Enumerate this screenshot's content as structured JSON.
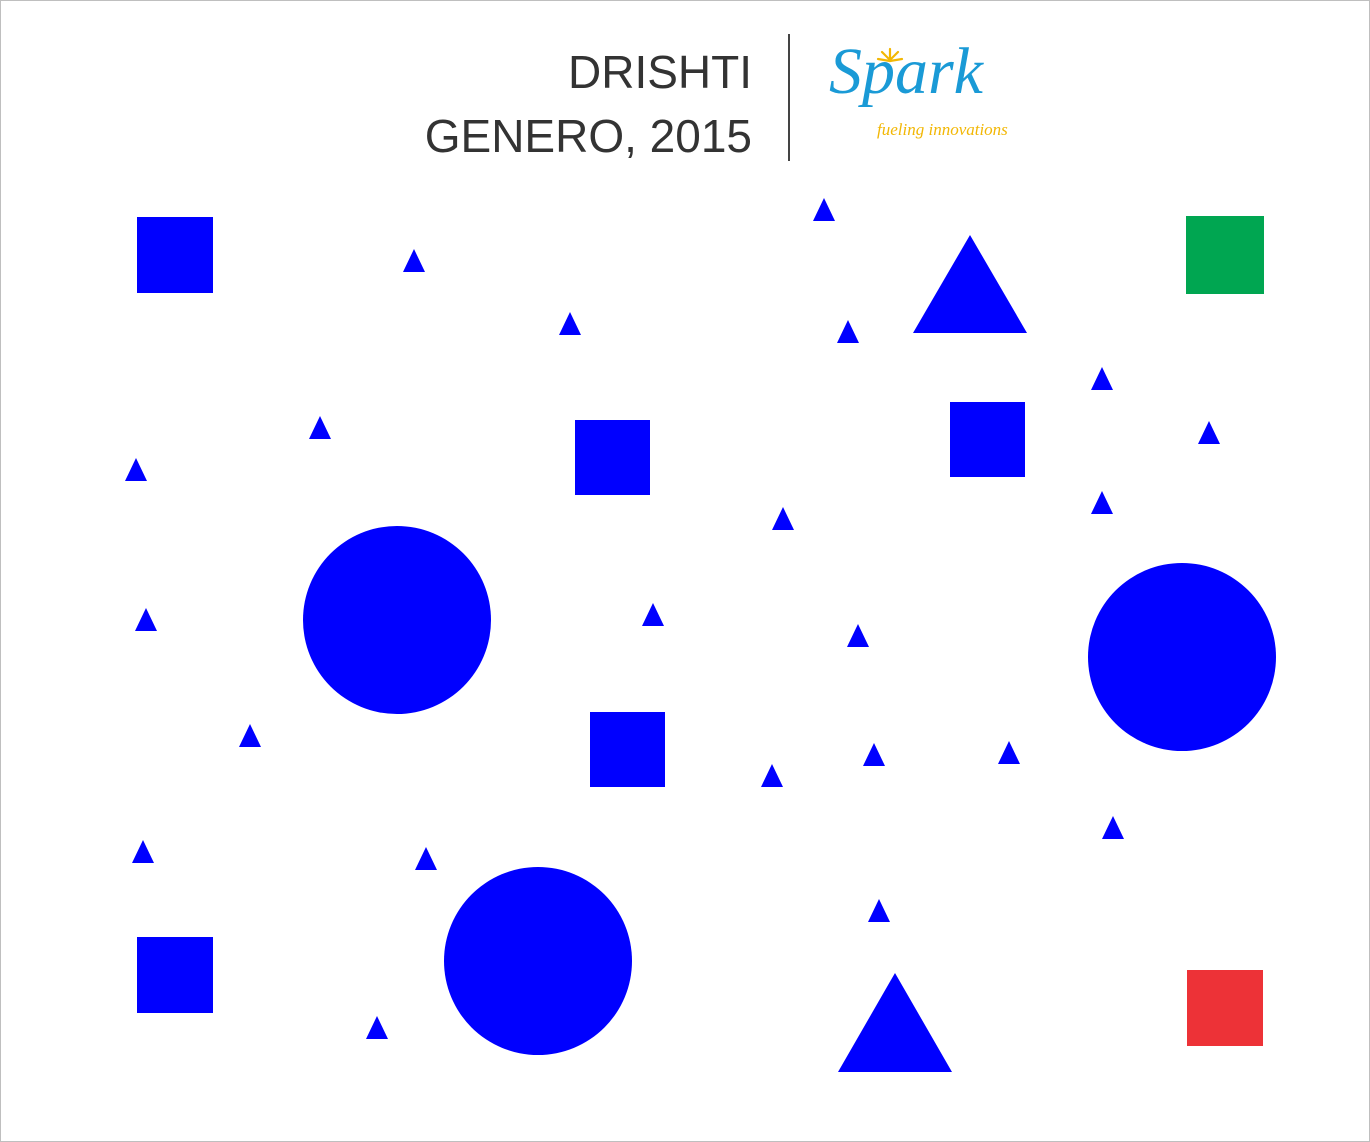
{
  "header": {
    "title_line1": "DRISHTI",
    "title_line2": "GENERO, 2015"
  },
  "logo": {
    "brand": "Spark",
    "tagline": "fueling innovations",
    "brand_color": "#1a9ad6",
    "tagline_color": "#f2b705"
  },
  "colors": {
    "primary_shape": "#0000ff",
    "green_square": "#00a651",
    "red_square": "#ed3237"
  }
}
